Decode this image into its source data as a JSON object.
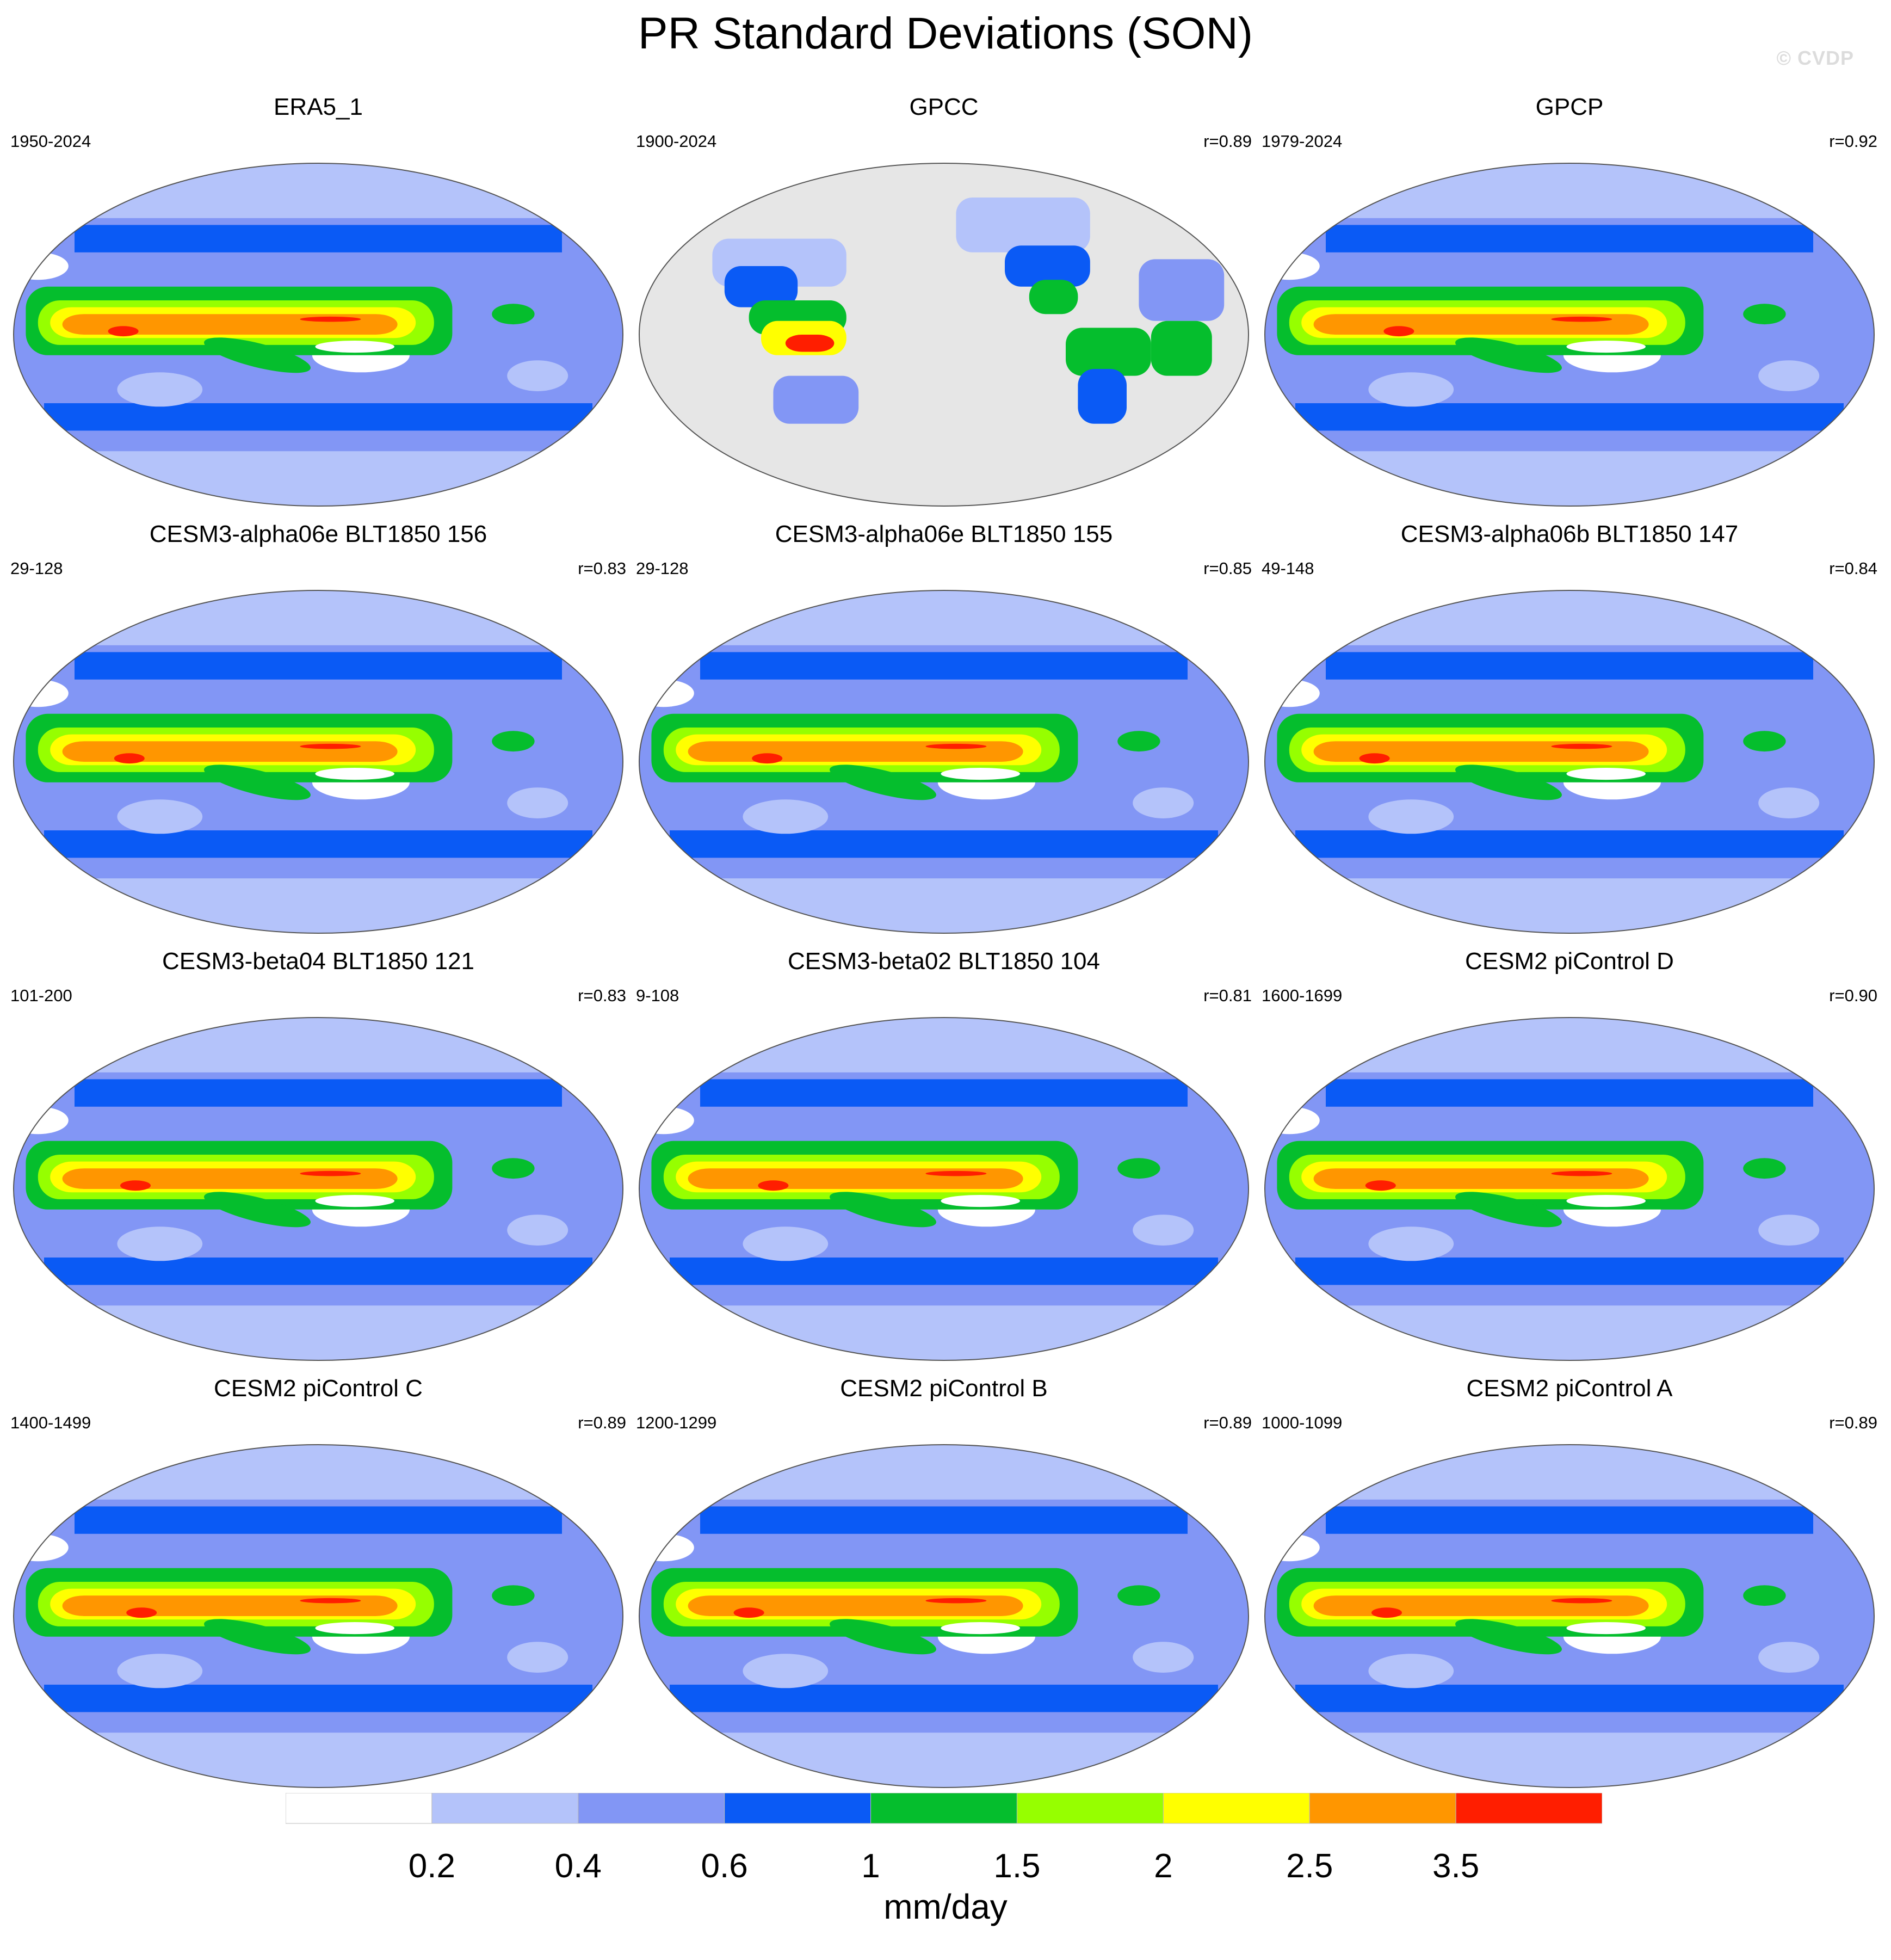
{
  "figure": {
    "title": "PR Standard Deviations (SON)",
    "watermark": "© CVDP",
    "units": "mm/day"
  },
  "panels": [
    {
      "title": "ERA5_1",
      "period": "1950-2024",
      "corr": "",
      "kind": "obs"
    },
    {
      "title": "GPCC",
      "period": "1900-2024",
      "corr": "r=0.89",
      "kind": "land"
    },
    {
      "title": "GPCP",
      "period": "1979-2024",
      "corr": "r=0.92",
      "kind": "obs"
    },
    {
      "title": "CESM3-alpha06e BLT1850 156",
      "period": "29-128",
      "corr": "r=0.83",
      "kind": "model"
    },
    {
      "title": "CESM3-alpha06e BLT1850 155",
      "period": "29-128",
      "corr": "r=0.85",
      "kind": "model"
    },
    {
      "title": "CESM3-alpha06b BLT1850 147",
      "period": "49-148",
      "corr": "r=0.84",
      "kind": "model"
    },
    {
      "title": "CESM3-beta04 BLT1850 121",
      "period": "101-200",
      "corr": "r=0.83",
      "kind": "model"
    },
    {
      "title": "CESM3-beta02 BLT1850 104",
      "period": "9-108",
      "corr": "r=0.81",
      "kind": "model"
    },
    {
      "title": "CESM2 piControl D",
      "period": "1600-1699",
      "corr": "r=0.90",
      "kind": "model"
    },
    {
      "title": "CESM2 piControl C",
      "period": "1400-1499",
      "corr": "r=0.89",
      "kind": "model"
    },
    {
      "title": "CESM2 piControl B",
      "period": "1200-1299",
      "corr": "r=0.89",
      "kind": "model"
    },
    {
      "title": "CESM2 piControl A",
      "period": "1000-1099",
      "corr": "r=0.89",
      "kind": "model"
    }
  ],
  "colorbar": {
    "labels": [
      "0.2",
      "0.4",
      "0.6",
      "1",
      "1.5",
      "2",
      "2.5",
      "3.5"
    ],
    "colors": [
      "#ffffff",
      "#b4c3fa",
      "#8296f5",
      "#0a5af5",
      "#05be2d",
      "#96ff00",
      "#ffff00",
      "#ff9600",
      "#ff1e00"
    ]
  }
}
